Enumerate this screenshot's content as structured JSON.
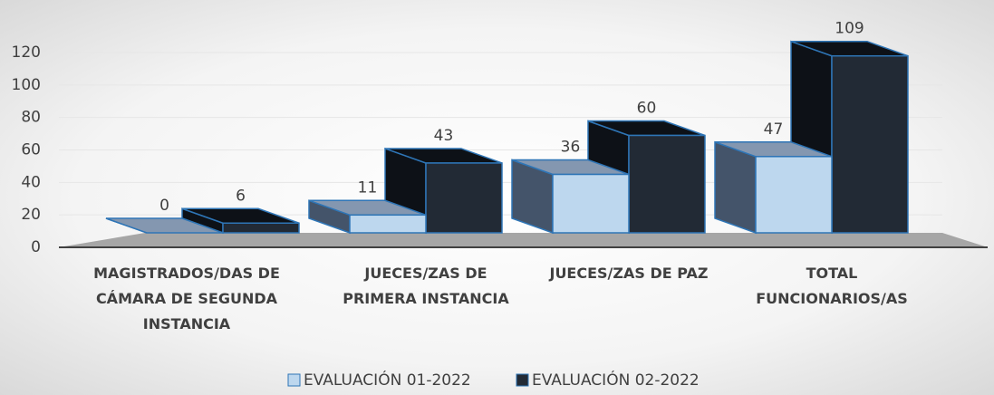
{
  "chart_data": {
    "type": "bar3d",
    "categories": [
      "MAGISTRADOS/DAS DE CÁMARA DE SEGUNDA INSTANCIA",
      "JUECES/ZAS DE PRIMERA INSTANCIA",
      "JUECES/ZAS DE PAZ",
      "TOTAL FUNCIONARIOS/AS"
    ],
    "series": [
      {
        "name": "EVALUACIÓN 01-2022",
        "color": "#bdd7ee",
        "values": [
          0,
          11,
          36,
          47
        ]
      },
      {
        "name": "EVALUACIÓN 02-2022",
        "color": "#222a35",
        "values": [
          6,
          43,
          60,
          109
        ]
      }
    ],
    "ylim": [
      0,
      120
    ],
    "yticks": [
      0,
      20,
      40,
      60,
      80,
      100,
      120
    ],
    "grid": true,
    "legend": "bottom"
  }
}
